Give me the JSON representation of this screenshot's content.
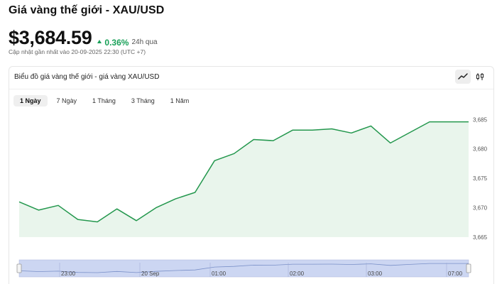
{
  "header": {
    "title": "Giá vàng thế giới - XAU/USD",
    "price": "$3,684.59",
    "change": "0.36%",
    "period": "24h qua",
    "updated": "Cập nhật gần nhất vào 20-09-2025 22:30 (UTC +7)"
  },
  "chart_card": {
    "title": "Biểu đồ giá vàng thế giới - giá vàng XAU/USD",
    "view_toggle": [
      {
        "name": "line-chart-icon",
        "active": true
      },
      {
        "name": "candlestick-icon",
        "active": false
      }
    ],
    "range_tabs": [
      {
        "label": "1 Ngày",
        "active": true
      },
      {
        "label": "7 Ngày",
        "active": false
      },
      {
        "label": "1 Tháng",
        "active": false
      },
      {
        "label": "3 Tháng",
        "active": false
      },
      {
        "label": "1 Năm",
        "active": false
      }
    ]
  },
  "colors": {
    "line": "#23974d",
    "area_fill": "#e9f5ec",
    "navigator_fill": "#ccd6f2",
    "navigator_line": "#7a90c8",
    "positive": "#18a058"
  },
  "chart_data": {
    "type": "area",
    "y_ticks": [
      "3,665",
      "3,670",
      "3,675",
      "3,680",
      "3,685"
    ],
    "ylim": [
      3665,
      3686
    ],
    "values": [
      3671.0,
      3669.6,
      3670.4,
      3668.0,
      3667.6,
      3669.8,
      3667.8,
      3670.0,
      3671.5,
      3672.6,
      3678.0,
      3679.2,
      3681.6,
      3681.4,
      3683.2,
      3683.2,
      3683.4,
      3682.7,
      3683.9,
      3681.0,
      3682.8,
      3684.6,
      3684.6,
      3684.6
    ],
    "navigator_ticks": [
      "23:00",
      "20 Sep",
      "01:00",
      "02:00",
      "03:00",
      "07:00"
    ]
  }
}
